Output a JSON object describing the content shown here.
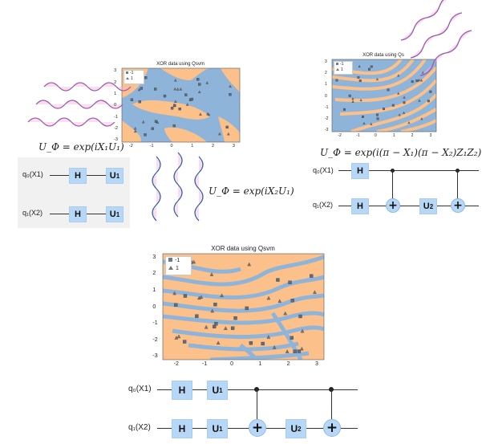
{
  "plots": {
    "tl": {
      "title": "XOR data using Qsvm",
      "xticks": [
        "-2",
        "-1",
        "0",
        "1",
        "2",
        "3"
      ],
      "yticks": [
        "3",
        "2",
        "1",
        "0",
        "-1",
        "-2",
        "-3"
      ],
      "legend": [
        "-1",
        "1"
      ]
    },
    "tr": {
      "title": "XOR data using Qs",
      "xticks": [
        "-2",
        "-1",
        "0",
        "1",
        "2",
        "3"
      ],
      "yticks": [
        "3",
        "2",
        "1",
        "0",
        "-1",
        "-2",
        "-3"
      ],
      "legend": [
        "-1",
        "1"
      ]
    },
    "bottom": {
      "title": "XOR data using Qsvm",
      "xticks": [
        "-2",
        "-1",
        "0",
        "1",
        "2",
        "3"
      ],
      "yticks": [
        "3",
        "2",
        "1",
        "0",
        "-1",
        "-2",
        "-3"
      ],
      "legend": [
        "-1",
        "1"
      ]
    }
  },
  "formulas": {
    "f1": "U_Φ = exp(iX₁U₁)",
    "f2": "U_Φ = exp(iX₂U₁)",
    "f3": "U_Φ = exp(i(π − X₁)(π − X₂)Z₁Z₂)"
  },
  "circuit_left": {
    "q0": "q₀(X1)",
    "q1": "q₁(X2)",
    "h": "H",
    "u1": "U",
    "u1_sub": "1"
  },
  "circuit_right": {
    "q0": "q₀(X1)",
    "q1": "q₁(X2)",
    "h": "H",
    "u2": "U",
    "u2_sub": "2",
    "plus": "+"
  },
  "circuit_bottom": {
    "q0": "q₀(X1)",
    "q1": "q₁(X2)",
    "h": "H",
    "u1": "U",
    "u1_sub": "1",
    "u2": "U",
    "u2_sub": "2",
    "plus": "+"
  },
  "colors": {
    "blue": "#8fb4d9",
    "orange": "#fcc08a",
    "wave": "#9b59b6",
    "wave_fill": "#f4b6d4",
    "gate": "#b7d7f7"
  }
}
